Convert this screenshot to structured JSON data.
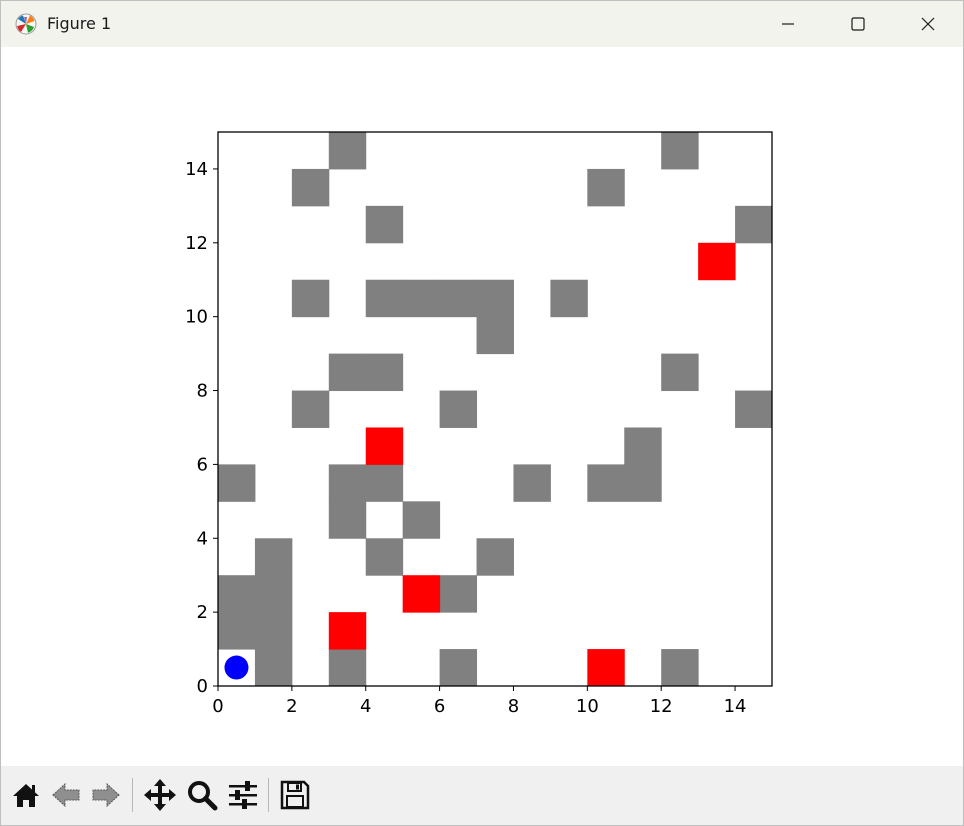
{
  "window": {
    "title": "Figure 1",
    "controls": [
      "minimize-icon",
      "maximize-icon",
      "close-icon"
    ]
  },
  "toolbar": {
    "buttons": [
      {
        "name": "home-button",
        "icon": "home-icon"
      },
      {
        "name": "back-button",
        "icon": "back-arrow-icon"
      },
      {
        "name": "forward-button",
        "icon": "forward-arrow-icon"
      },
      {
        "name": "pan-button",
        "icon": "move-arrows-icon"
      },
      {
        "name": "zoom-button",
        "icon": "magnifier-icon"
      },
      {
        "name": "configure-subplots-button",
        "icon": "sliders-icon"
      },
      {
        "name": "save-button",
        "icon": "floppy-disk-icon"
      }
    ]
  },
  "chart_data": {
    "type": "heatmap",
    "title": "",
    "xlabel": "",
    "ylabel": "",
    "xlim": [
      0,
      15
    ],
    "ylim": [
      0,
      15
    ],
    "xticks": [
      0,
      2,
      4,
      6,
      8,
      10,
      12,
      14
    ],
    "yticks": [
      0,
      2,
      4,
      6,
      8,
      10,
      12,
      14
    ],
    "grid": false,
    "colors": {
      "obstacle": "#808080",
      "target": "#ff0000",
      "agent": "#0000ff",
      "empty": "#ffffff"
    },
    "obstacle_cells": [
      [
        1,
        0
      ],
      [
        3,
        0
      ],
      [
        6,
        0
      ],
      [
        12,
        0
      ],
      [
        0,
        1
      ],
      [
        1,
        1
      ],
      [
        0,
        2
      ],
      [
        1,
        2
      ],
      [
        6,
        2
      ],
      [
        1,
        3
      ],
      [
        4,
        3
      ],
      [
        7,
        3
      ],
      [
        3,
        4
      ],
      [
        5,
        4
      ],
      [
        0,
        5
      ],
      [
        3,
        5
      ],
      [
        4,
        5
      ],
      [
        8,
        5
      ],
      [
        10,
        5
      ],
      [
        11,
        5
      ],
      [
        11,
        6
      ],
      [
        2,
        7
      ],
      [
        6,
        7
      ],
      [
        14,
        7
      ],
      [
        3,
        8
      ],
      [
        4,
        8
      ],
      [
        12,
        8
      ],
      [
        7,
        9
      ],
      [
        2,
        10
      ],
      [
        4,
        10
      ],
      [
        5,
        10
      ],
      [
        6,
        10
      ],
      [
        7,
        10
      ],
      [
        9,
        10
      ],
      [
        4,
        12
      ],
      [
        14,
        12
      ],
      [
        2,
        13
      ],
      [
        10,
        13
      ],
      [
        3,
        14
      ],
      [
        12,
        14
      ]
    ],
    "target_cells": [
      [
        10,
        0
      ],
      [
        3,
        1
      ],
      [
        5,
        2
      ],
      [
        4,
        6
      ],
      [
        13,
        11
      ]
    ],
    "agent": {
      "x": 0.5,
      "y": 0.5
    }
  }
}
